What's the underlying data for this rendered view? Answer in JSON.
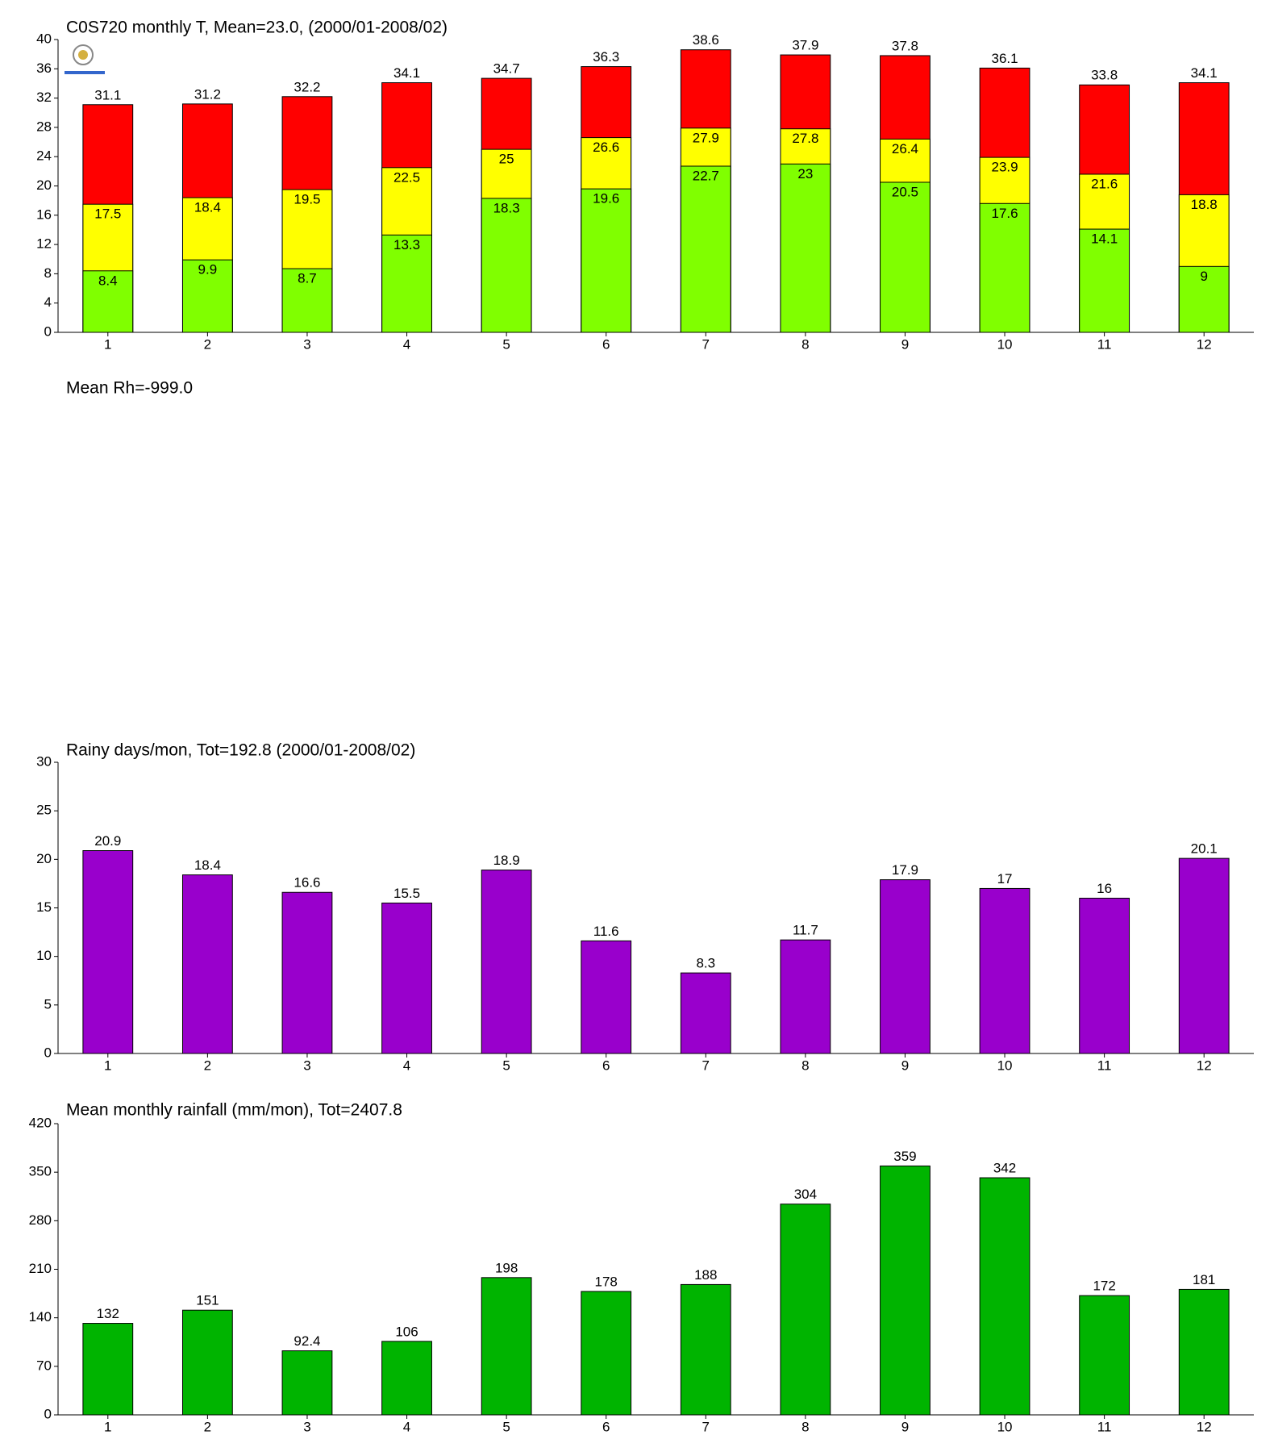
{
  "chart_data": [
    {
      "type": "bar",
      "title": "C0S720 monthly T, Mean=23.0, (2000/01-2008/02)",
      "categories": [
        "1",
        "2",
        "3",
        "4",
        "5",
        "6",
        "7",
        "8",
        "9",
        "10",
        "11",
        "12"
      ],
      "series": [
        {
          "color": "#ff0000",
          "values": [
            31.1,
            31.2,
            32.2,
            34.1,
            34.7,
            36.3,
            38.6,
            37.9,
            37.8,
            36.1,
            33.8,
            34.1
          ]
        },
        {
          "color": "#ffff00",
          "values": [
            17.5,
            18.4,
            19.5,
            22.5,
            25,
            26.6,
            27.9,
            27.8,
            26.4,
            23.9,
            21.6,
            18.8
          ]
        },
        {
          "color": "#80ff00",
          "values": [
            8.4,
            9.9,
            8.7,
            13.3,
            18.3,
            19.6,
            22.7,
            23,
            20.5,
            17.6,
            14.1,
            9
          ]
        }
      ],
      "ylim": [
        0,
        40
      ],
      "yticks": [
        0,
        4,
        8,
        12,
        16,
        20,
        24,
        28,
        32,
        36,
        40
      ]
    },
    {
      "type": "empty",
      "title": "Mean Rh=-999.0"
    },
    {
      "type": "bar",
      "title": "Rainy days/mon, Tot=192.8 (2000/01-2008/02)",
      "categories": [
        "1",
        "2",
        "3",
        "4",
        "5",
        "6",
        "7",
        "8",
        "9",
        "10",
        "11",
        "12"
      ],
      "series": [
        {
          "color": "#9900cc",
          "values": [
            20.9,
            18.4,
            16.6,
            15.5,
            18.9,
            11.6,
            8.3,
            11.7,
            17.9,
            17,
            16,
            20.1
          ]
        }
      ],
      "ylim": [
        0,
        30
      ],
      "yticks": [
        0,
        5,
        10,
        15,
        20,
        25,
        30
      ]
    },
    {
      "type": "bar",
      "title": "Mean monthly rainfall (mm/mon), Tot=2407.8",
      "categories": [
        "1",
        "2",
        "3",
        "4",
        "5",
        "6",
        "7",
        "8",
        "9",
        "10",
        "11",
        "12"
      ],
      "series": [
        {
          "color": "#00b400",
          "values": [
            132,
            151,
            92.4,
            106,
            198,
            178,
            188,
            304,
            359,
            342,
            172,
            181
          ]
        }
      ],
      "ylim": [
        0,
        420
      ],
      "yticks": [
        0,
        70,
        140,
        210,
        280,
        350,
        420
      ]
    }
  ]
}
